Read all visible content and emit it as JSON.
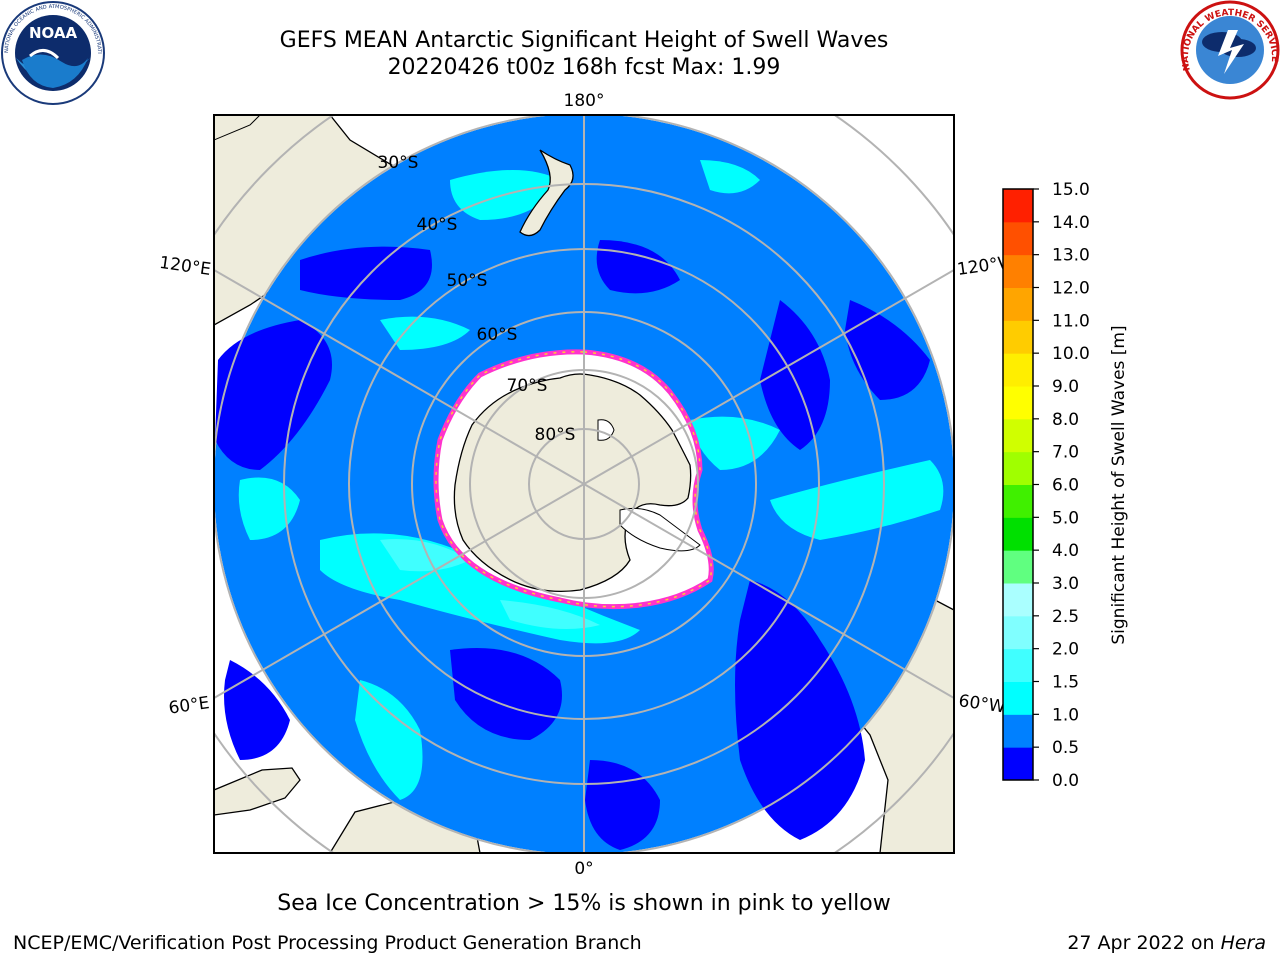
{
  "header": {
    "title_line1": "GEFS MEAN Antarctic Significant Height of Swell Waves",
    "title_line2": "20220426 t00z 168h fcst   Max: 1.99"
  },
  "logos": {
    "left_text": "NOAA",
    "left_ring": "NATIONAL OCEANIC AND ATMOSPHERIC ADMINISTRATION · U.S. DEPARTMENT OF COMMERCE",
    "right_ring": "NATIONAL WEATHER SERVICE"
  },
  "map": {
    "projection": "south-polar-stereographic",
    "longitude_labels": {
      "top": "180°",
      "bottom": "0°",
      "upper_left": "120°E",
      "upper_right": "120°W",
      "lower_left": "60°E",
      "lower_right": "60°W"
    },
    "latitude_labels": [
      "30°S",
      "40°S",
      "50°S",
      "60°S",
      "70°S",
      "80°S"
    ],
    "colors": {
      "land": "#eeecdc",
      "sea_ice": "#ffffff",
      "ice_edge": "#ff33cc",
      "graticule": "#b3b3b3",
      "frame": "#000000"
    }
  },
  "colorbar": {
    "label": "Significant Height of Swell Waves [m]",
    "ticks": [
      "0.0",
      "0.5",
      "1.0",
      "1.5",
      "2.0",
      "2.5",
      "3.0",
      "4.0",
      "5.0",
      "6.0",
      "7.0",
      "8.0",
      "9.0",
      "10.0",
      "11.0",
      "12.0",
      "13.0",
      "14.0",
      "15.0"
    ],
    "colors": [
      "#0000ff",
      "#0080ff",
      "#00ffff",
      "#40ffff",
      "#80ffff",
      "#aaffff",
      "#60ff80",
      "#00e000",
      "#40f000",
      "#a0ff00",
      "#d0ff00",
      "#ffff00",
      "#ffee00",
      "#ffcc00",
      "#ffa500",
      "#ff8000",
      "#ff5000",
      "#ff2000"
    ]
  },
  "footer": {
    "note": "Sea Ice Concentration > 15% is shown in pink to yellow",
    "left": "NCEP/EMC/Verification Post Processing Product Generation Branch",
    "right_prefix": "27 Apr 2022 on",
    "right_host": "Hera"
  }
}
